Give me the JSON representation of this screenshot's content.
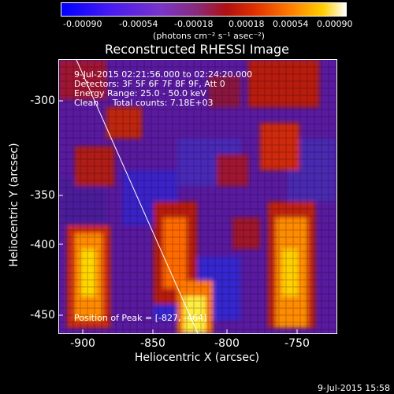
{
  "colorbar": {
    "ticks": [
      "-0.00090",
      "-0.00054",
      "-0.00018",
      "0.00018",
      "0.00054",
      "0.00090"
    ],
    "unit": "(photons cm⁻² s⁻¹ asec⁻²)"
  },
  "title": "Reconstructed RHESSI Image",
  "info": {
    "time": "9-Jul-2015 02:21:56.000 to 02:24:20.000",
    "detectors": "Detectors: 3F 5F 6F 7F 8F 9F, Att 0",
    "energy": "Energy Range: 25.0 - 50.0 keV",
    "clean": "Clean     Total counts: 7.18E+03"
  },
  "peak": "Position of Peak = [-827, -464]",
  "axes": {
    "xlabel": "Heliocentric X (arcsec)",
    "ylabel": "Heliocentric Y (arcsec)",
    "xticks": [
      "-900",
      "-850",
      "-800",
      "-750"
    ],
    "yticks": [
      "-300",
      "-350",
      "-400",
      "-450"
    ]
  },
  "footer": "9-Jul-2015 15:58",
  "colors": {
    "background": "#000000",
    "axis": "#ffffff",
    "limb_line": "#ffffff"
  }
}
